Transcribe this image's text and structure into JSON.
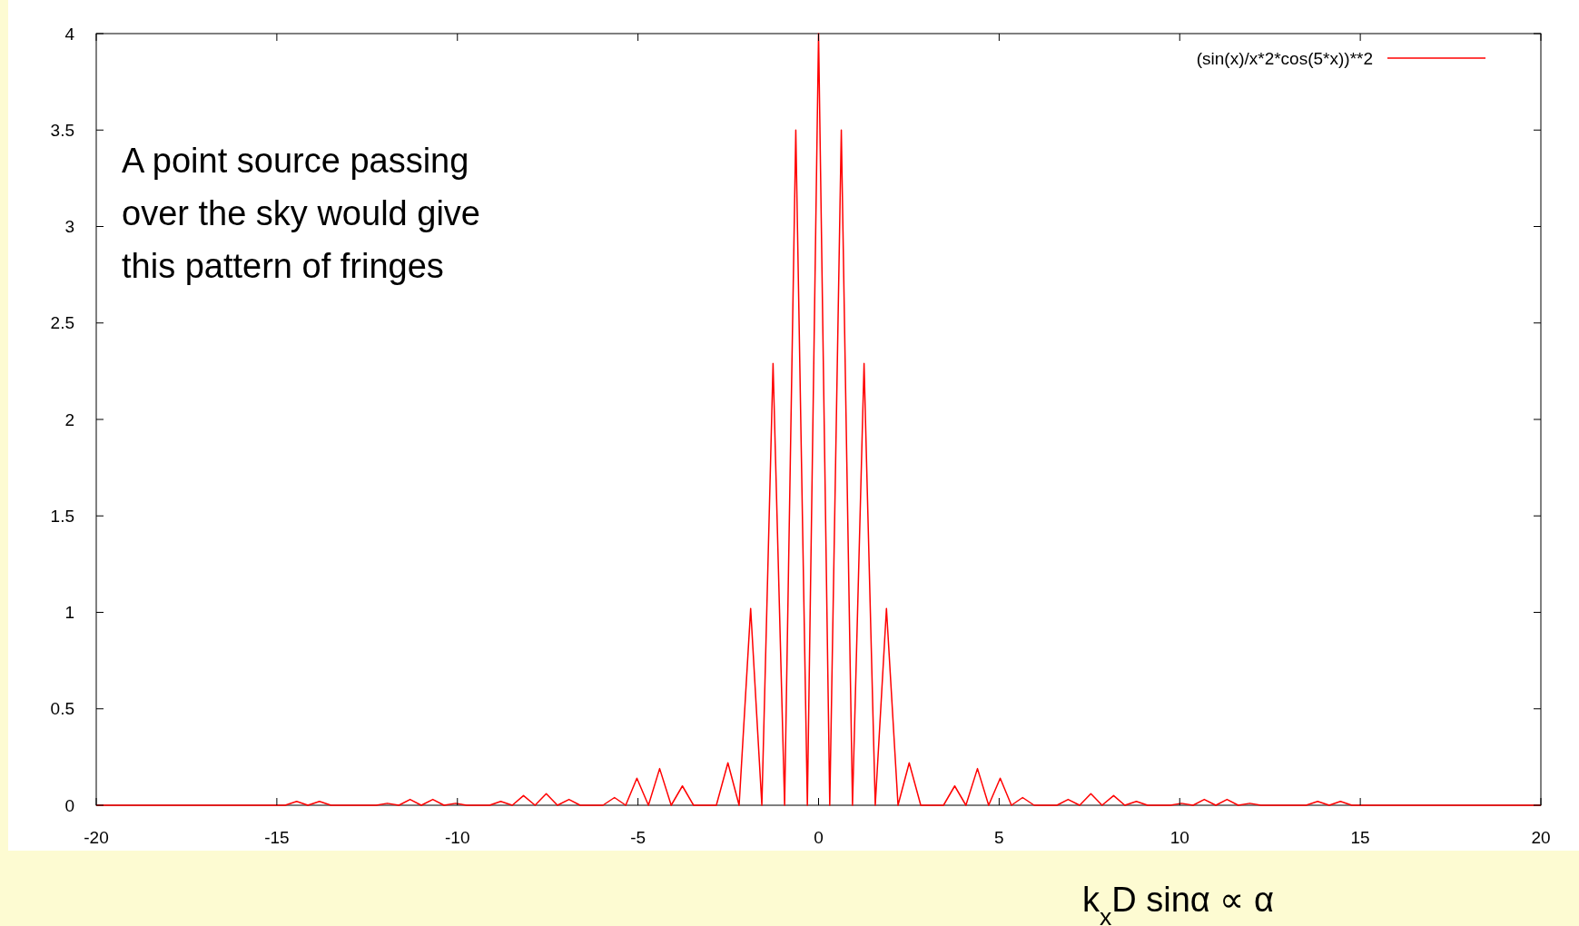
{
  "chart_data": {
    "type": "line",
    "xlabel": "k$_{x}$D sinα  ∝  α",
    "annotations": [
      "A point source passing over the sky would give this pattern of fringes"
    ],
    "x": [
      -20,
      -14.77,
      -14.45,
      -14.14,
      -13.82,
      -13.5,
      -12.57,
      -12.25,
      -11.94,
      -11.62,
      -11.31,
      -11,
      -10.68,
      -10.37,
      -10.05,
      -9.74,
      -9.42,
      -9.11,
      -8.8,
      -8.48,
      -8.17,
      -7.85,
      -7.54,
      -7.23,
      -6.91,
      -6.6,
      -6.28,
      -5.97,
      -5.65,
      -5.34,
      -5.03,
      -4.71,
      -4.4,
      -4.08,
      -3.77,
      -3.46,
      -3.14,
      -2.83,
      -2.51,
      -2.2,
      -1.88,
      -1.57,
      -1.26,
      -0.94,
      -0.63,
      -0.31,
      0,
      0.31,
      0.63,
      0.94,
      1.26,
      1.57,
      1.88,
      2.2,
      2.51,
      2.83,
      3.14,
      3.46,
      3.77,
      4.08,
      4.4,
      4.71,
      5.03,
      5.34,
      5.65,
      5.97,
      6.28,
      6.6,
      6.91,
      7.23,
      7.54,
      7.85,
      8.17,
      8.48,
      8.8,
      9.11,
      9.42,
      9.74,
      10.05,
      10.37,
      10.68,
      11,
      11.31,
      11.62,
      11.94,
      12.25,
      12.57,
      13.5,
      13.82,
      14.14,
      14.45,
      14.77,
      20
    ],
    "series": [
      {
        "name": "(sin(x)/x*2*cos(5*x))**2",
        "color": "#ff0000",
        "values": [
          0,
          0,
          0.02,
          0,
          0.02,
          0,
          0,
          0,
          0.01,
          0,
          0.03,
          0,
          0.03,
          0,
          0.01,
          0,
          0,
          0,
          0.02,
          0,
          0.05,
          0,
          0.06,
          0,
          0.03,
          0,
          0,
          0,
          0.04,
          0,
          0.14,
          0,
          0.19,
          0,
          0.1,
          0,
          0,
          0,
          0.22,
          0,
          1.02,
          0,
          2.29,
          0,
          3.5,
          0,
          4,
          0,
          3.5,
          0,
          2.29,
          0,
          1.02,
          0,
          0.22,
          0,
          0,
          0,
          0.1,
          0,
          0.19,
          0,
          0.14,
          0,
          0.04,
          0,
          0,
          0,
          0.03,
          0,
          0.06,
          0,
          0.05,
          0,
          0.02,
          0,
          0,
          0,
          0.01,
          0,
          0.03,
          0,
          0.03,
          0,
          0.01,
          0,
          0,
          0,
          0.02,
          0,
          0.02,
          0,
          0
        ]
      }
    ],
    "xlim": [
      -20,
      20
    ],
    "xticks": [
      -20,
      -15,
      -10,
      -5,
      0,
      5,
      10,
      15,
      20
    ],
    "ylim": [
      0,
      4
    ],
    "yticks": [
      0,
      0.5,
      1,
      1.5,
      2,
      2.5,
      3,
      3.5,
      4
    ],
    "grid": false,
    "legend": "top right",
    "marker": "none",
    "line_style": "solid"
  }
}
